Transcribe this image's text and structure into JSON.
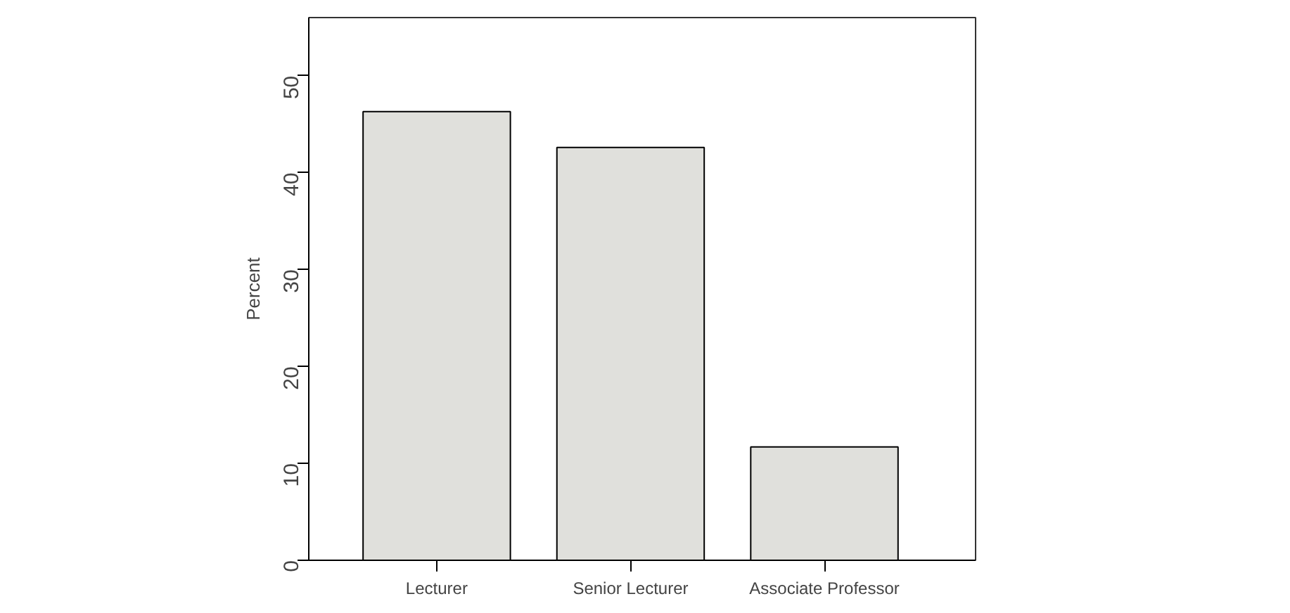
{
  "chart_data": {
    "type": "bar",
    "ylabel": "Percent",
    "categories": [
      "Lecturer",
      "Senior Lecturer",
      "Associate Professor"
    ],
    "values": [
      46.3,
      42.6,
      11.7
    ],
    "color": "#e0e0dc",
    "ylim": [
      0,
      56
    ],
    "yticks": [
      0,
      10,
      20,
      30,
      40,
      50
    ],
    "grid": false
  }
}
